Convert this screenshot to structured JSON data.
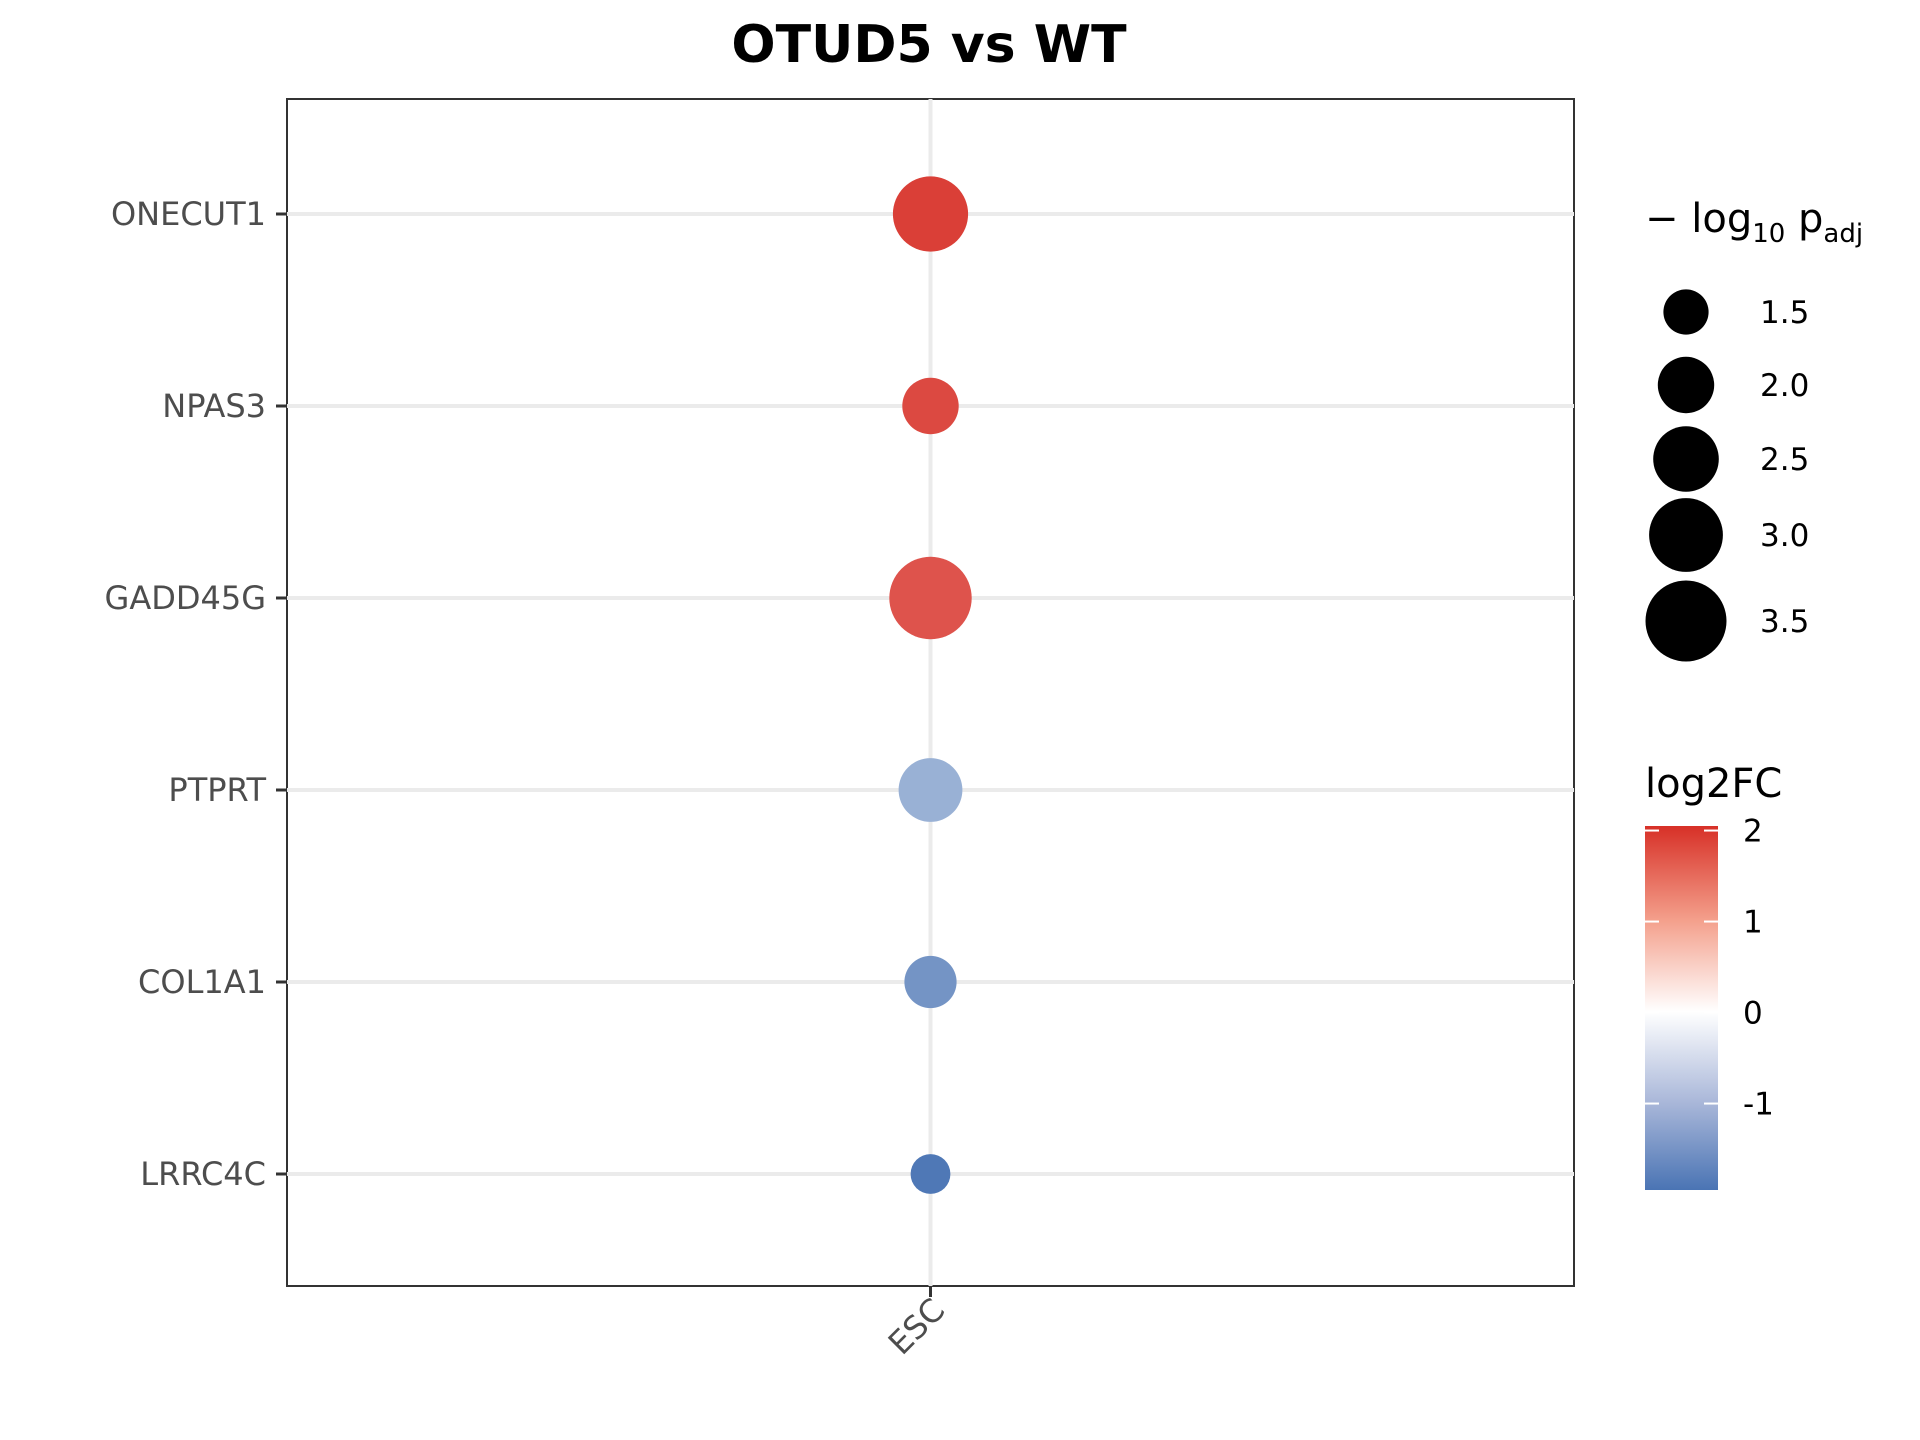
{
  "chart_data": {
    "type": "scatter",
    "title": "OTUD5 vs WT",
    "xlabel": "",
    "ylabel": "",
    "x_categories": [
      "ESC"
    ],
    "y_categories": [
      "ONECUT1",
      "NPAS3",
      "GADD45G",
      "PTPRT",
      "COL1A1",
      "LRRC4C"
    ],
    "points": [
      {
        "x": "ESC",
        "y": "ONECUT1",
        "log2FC": 1.9,
        "neg_log10_padj": 3.1
      },
      {
        "x": "ESC",
        "y": "NPAS3",
        "log2FC": 1.8,
        "neg_log10_padj": 2.0
      },
      {
        "x": "ESC",
        "y": "GADD45G",
        "log2FC": 1.7,
        "neg_log10_padj": 3.6
      },
      {
        "x": "ESC",
        "y": "PTPRT",
        "log2FC": -1.1,
        "neg_log10_padj": 2.4
      },
      {
        "x": "ESC",
        "y": "COL1A1",
        "log2FC": -1.5,
        "neg_log10_padj": 1.8
      },
      {
        "x": "ESC",
        "y": "LRRC4C",
        "log2FC": -1.9,
        "neg_log10_padj": 1.3
      }
    ],
    "size_legend": {
      "title_main": "− log",
      "title_sub1": "10",
      "title_p": " p",
      "title_sub2": "adj",
      "breaks": [
        1.5,
        2.0,
        2.5,
        3.0,
        3.5
      ],
      "labels": [
        "1.5",
        "2.0",
        "2.5",
        "3.0",
        "3.5"
      ]
    },
    "color_legend": {
      "title": "log2FC",
      "ticks": [
        2,
        1,
        0,
        -1
      ],
      "tick_labels": [
        "2",
        "1",
        "0",
        "-1"
      ],
      "min": -1.95,
      "max": 2.05,
      "low_color": "#4575b4",
      "mid_color": "#ffffff",
      "high_color": "#d73027"
    },
    "grid": true,
    "legend_position": "right"
  }
}
